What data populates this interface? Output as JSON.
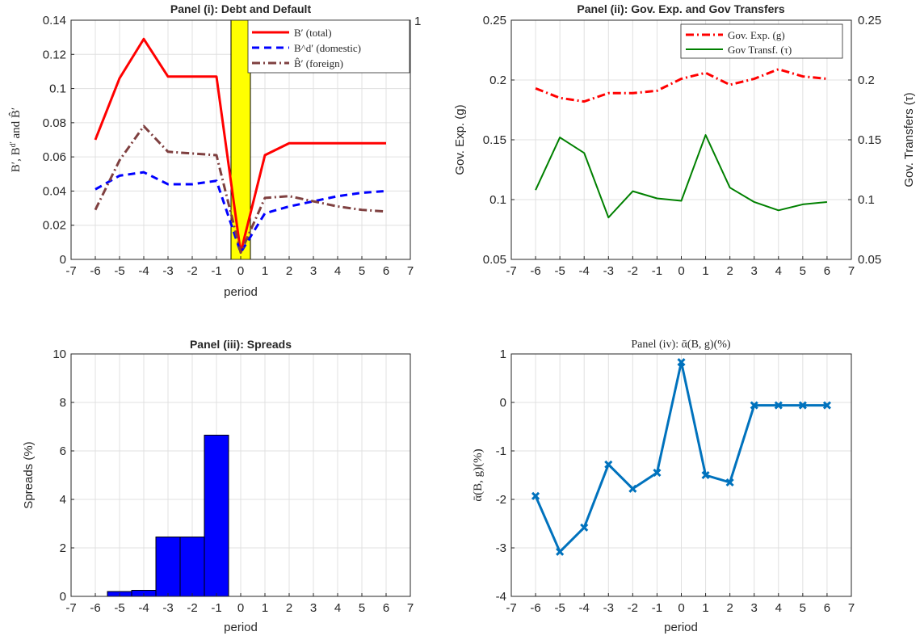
{
  "chart_data": [
    {
      "id": "p1",
      "type": "line",
      "title": "Panel (i): Debt and Default",
      "xlabel": "period",
      "ylabel": "B', B^d' and B̂'",
      "xlim": [
        -7,
        7
      ],
      "ylim": [
        0,
        0.14
      ],
      "x_ticks": [
        "-7",
        "-6",
        "-5",
        "-4",
        "-3",
        "-2",
        "-1",
        "0",
        "1",
        "2",
        "3",
        "4",
        "5",
        "6",
        "7"
      ],
      "y_ticks": [
        "0",
        "0.02",
        "0.04",
        "0.06",
        "0.08",
        "0.1",
        "0.12",
        "0.14"
      ],
      "right_axis_tick": "1",
      "grid": true,
      "legend": "top-right",
      "default_bar": {
        "x": 0,
        "width": 0.8,
        "color": "#ffff00"
      },
      "x": [
        -6,
        -5,
        -4,
        -3,
        -2,
        -1,
        0,
        1,
        2,
        3,
        4,
        5,
        6
      ],
      "series": [
        {
          "name": "B′ (total)",
          "color": "#ff0000",
          "dash": "solid",
          "values": [
            0.07,
            0.106,
            0.129,
            0.107,
            0.107,
            0.107,
            0.004,
            0.061,
            0.068,
            0.068,
            0.068,
            0.068,
            0.068
          ]
        },
        {
          "name": "B^d′ (domestic)",
          "color": "#0000ff",
          "dash": "dashed",
          "values": [
            0.041,
            0.049,
            0.051,
            0.044,
            0.044,
            0.046,
            0.004,
            0.027,
            0.031,
            0.034,
            0.037,
            0.039,
            0.04
          ]
        },
        {
          "name": "B̂′ (foreign)",
          "color": "#7f4040",
          "dash": "dashdot",
          "values": [
            0.029,
            0.058,
            0.078,
            0.063,
            0.062,
            0.061,
            0.004,
            0.036,
            0.037,
            0.034,
            0.031,
            0.029,
            0.028
          ]
        }
      ]
    },
    {
      "id": "p2",
      "type": "line",
      "title": "Panel (ii): Gov. Exp. and Gov Transfers",
      "xlabel": "",
      "ylabel": "Gov. Exp. (g)",
      "ylabel_right": "Gov. Transfers (τ)",
      "xlim": [
        -7,
        7
      ],
      "ylim": [
        0.05,
        0.25
      ],
      "ylim_right": [
        0.05,
        0.25
      ],
      "x_ticks": [
        "-7",
        "-6",
        "-5",
        "-4",
        "-3",
        "-2",
        "-1",
        "0",
        "1",
        "2",
        "3",
        "4",
        "5",
        "6",
        "7"
      ],
      "y_ticks": [
        "0.05",
        "0.1",
        "0.15",
        "0.2",
        "0.25"
      ],
      "grid": true,
      "legend": "top-right",
      "x": [
        -6,
        -5,
        -4,
        -3,
        -2,
        -1,
        0,
        1,
        2,
        3,
        4,
        5,
        6
      ],
      "series": [
        {
          "name": "Gov. Exp. (g)",
          "color": "#ff0000",
          "dash": "dashdot",
          "values": [
            0.193,
            0.185,
            0.182,
            0.189,
            0.189,
            0.191,
            0.201,
            0.206,
            0.196,
            0.201,
            0.209,
            0.203,
            0.201
          ]
        },
        {
          "name": "Gov Transf. (τ)",
          "color": "#008000",
          "dash": "solid",
          "values": [
            0.108,
            0.152,
            0.139,
            0.085,
            0.107,
            0.101,
            0.099,
            0.154,
            0.11,
            0.098,
            0.091,
            0.096,
            0.098
          ]
        }
      ]
    },
    {
      "id": "p3",
      "type": "bar",
      "title": "Panel (iii): Spreads",
      "xlabel": "period",
      "ylabel": "Spreads (%)",
      "xlim": [
        -7,
        7
      ],
      "ylim": [
        0,
        10
      ],
      "x_ticks": [
        "-7",
        "-6",
        "-5",
        "-4",
        "-3",
        "-2",
        "-1",
        "0",
        "1",
        "2",
        "3",
        "4",
        "5",
        "6",
        "7"
      ],
      "y_ticks": [
        "0",
        "2",
        "4",
        "6",
        "8",
        "10"
      ],
      "grid": true,
      "bar_color": "#0000ff",
      "x": [
        -5,
        -4,
        -3,
        -2,
        -1
      ],
      "values": [
        0.2,
        0.25,
        2.45,
        2.45,
        6.65
      ]
    },
    {
      "id": "p4",
      "type": "line",
      "title": "Panel (iv): ᾱ(B, g)(%)",
      "xlabel": "period",
      "ylabel": "ᾱ(B, g)(%)",
      "xlim": [
        -7,
        7
      ],
      "ylim": [
        -4,
        1
      ],
      "x_ticks": [
        "-7",
        "-6",
        "-5",
        "-4",
        "-3",
        "-2",
        "-1",
        "0",
        "1",
        "2",
        "3",
        "4",
        "5",
        "6",
        "7"
      ],
      "y_ticks": [
        "-4",
        "-3",
        "-2",
        "-1",
        "0",
        "1"
      ],
      "grid": true,
      "marker": "x",
      "x": [
        -6,
        -5,
        -4,
        -3,
        -2,
        -1,
        0,
        1,
        2,
        3,
        4,
        5,
        6
      ],
      "series": [
        {
          "color": "#0072bd",
          "dash": "solid",
          "values": [
            -1.93,
            -3.08,
            -2.58,
            -1.28,
            -1.78,
            -1.45,
            0.83,
            -1.5,
            -1.65,
            -0.06,
            -0.06,
            -0.06,
            -0.06
          ]
        }
      ]
    }
  ]
}
